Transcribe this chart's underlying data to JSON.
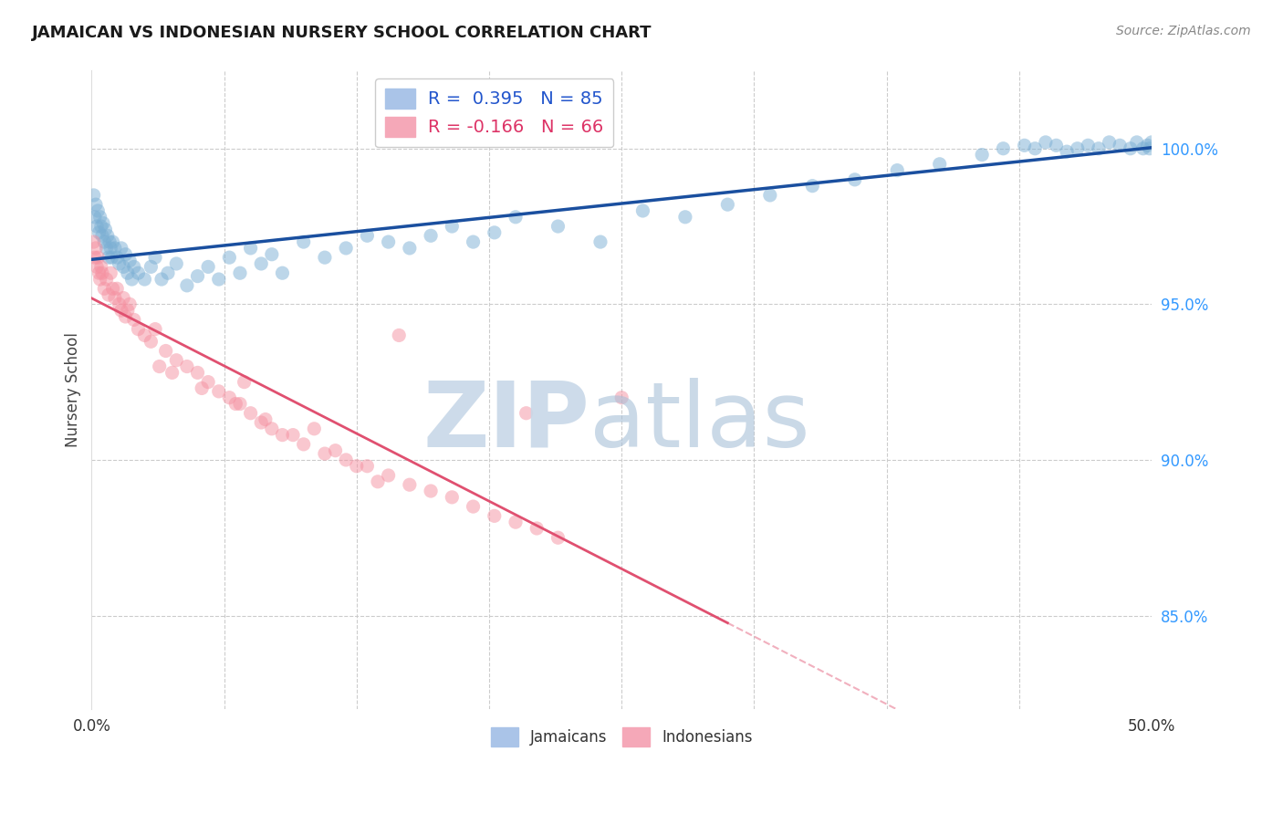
{
  "title": "JAMAICAN VS INDONESIAN NURSERY SCHOOL CORRELATION CHART",
  "source": "Source: ZipAtlas.com",
  "ylabel": "Nursery School",
  "ytick_labels": [
    "85.0%",
    "90.0%",
    "95.0%",
    "100.0%"
  ],
  "ytick_values": [
    85.0,
    90.0,
    95.0,
    100.0
  ],
  "xlim": [
    0.0,
    50.0
  ],
  "ylim": [
    82.0,
    102.5
  ],
  "blue_color": "#7bafd4",
  "pink_color": "#f590a0",
  "blue_line_color": "#1a4f9f",
  "pink_line_color": "#e05070",
  "background_color": "#ffffff",
  "blue_R": 0.395,
  "blue_N": 85,
  "pink_R": -0.166,
  "pink_N": 66,
  "blue_scatter_x": [
    0.1,
    0.15,
    0.2,
    0.25,
    0.3,
    0.35,
    0.4,
    0.45,
    0.5,
    0.55,
    0.6,
    0.65,
    0.7,
    0.75,
    0.8,
    0.85,
    0.9,
    0.95,
    1.0,
    1.1,
    1.2,
    1.3,
    1.4,
    1.5,
    1.6,
    1.7,
    1.8,
    1.9,
    2.0,
    2.2,
    2.5,
    2.8,
    3.0,
    3.3,
    3.6,
    4.0,
    4.5,
    5.0,
    5.5,
    6.0,
    6.5,
    7.0,
    7.5,
    8.0,
    8.5,
    9.0,
    10.0,
    11.0,
    12.0,
    13.0,
    14.0,
    15.0,
    16.0,
    17.0,
    18.0,
    19.0,
    20.0,
    22.0,
    24.0,
    26.0,
    28.0,
    30.0,
    32.0,
    34.0,
    36.0,
    38.0,
    40.0,
    42.0,
    43.0,
    44.0,
    44.5,
    45.0,
    45.5,
    46.0,
    46.5,
    47.0,
    47.5,
    48.0,
    48.5,
    49.0,
    49.3,
    49.6,
    49.8,
    49.9,
    50.0
  ],
  "blue_scatter_y": [
    98.5,
    97.8,
    98.2,
    97.5,
    98.0,
    97.3,
    97.8,
    97.5,
    97.2,
    97.6,
    97.0,
    97.4,
    96.8,
    97.2,
    96.5,
    97.0,
    96.8,
    96.5,
    97.0,
    96.8,
    96.5,
    96.3,
    96.8,
    96.2,
    96.6,
    96.0,
    96.4,
    95.8,
    96.2,
    96.0,
    95.8,
    96.2,
    96.5,
    95.8,
    96.0,
    96.3,
    95.6,
    95.9,
    96.2,
    95.8,
    96.5,
    96.0,
    96.8,
    96.3,
    96.6,
    96.0,
    97.0,
    96.5,
    96.8,
    97.2,
    97.0,
    96.8,
    97.2,
    97.5,
    97.0,
    97.3,
    97.8,
    97.5,
    97.0,
    98.0,
    97.8,
    98.2,
    98.5,
    98.8,
    99.0,
    99.3,
    99.5,
    99.8,
    100.0,
    100.1,
    100.0,
    100.2,
    100.1,
    99.9,
    100.0,
    100.1,
    100.0,
    100.2,
    100.1,
    100.0,
    100.2,
    100.0,
    100.1,
    100.0,
    100.2
  ],
  "pink_scatter_x": [
    0.1,
    0.15,
    0.2,
    0.25,
    0.3,
    0.35,
    0.4,
    0.45,
    0.5,
    0.6,
    0.7,
    0.8,
    0.9,
    1.0,
    1.1,
    1.2,
    1.3,
    1.4,
    1.5,
    1.6,
    1.7,
    1.8,
    2.0,
    2.2,
    2.5,
    2.8,
    3.0,
    3.5,
    4.0,
    4.5,
    5.0,
    5.5,
    6.0,
    6.5,
    7.0,
    7.5,
    8.0,
    8.5,
    9.0,
    10.0,
    11.0,
    12.0,
    13.0,
    14.0,
    15.0,
    16.0,
    17.0,
    18.0,
    19.0,
    20.0,
    21.0,
    22.0,
    14.5,
    7.2,
    10.5,
    20.5,
    25.0,
    3.2,
    3.8,
    5.2,
    6.8,
    8.2,
    9.5,
    11.5,
    12.5,
    13.5
  ],
  "pink_scatter_y": [
    97.0,
    96.5,
    96.8,
    96.2,
    96.5,
    96.0,
    95.8,
    96.2,
    96.0,
    95.5,
    95.8,
    95.3,
    96.0,
    95.5,
    95.2,
    95.5,
    95.0,
    94.8,
    95.2,
    94.6,
    94.8,
    95.0,
    94.5,
    94.2,
    94.0,
    93.8,
    94.2,
    93.5,
    93.2,
    93.0,
    92.8,
    92.5,
    92.2,
    92.0,
    91.8,
    91.5,
    91.2,
    91.0,
    90.8,
    90.5,
    90.2,
    90.0,
    89.8,
    89.5,
    89.2,
    89.0,
    88.8,
    88.5,
    88.2,
    88.0,
    87.8,
    87.5,
    94.0,
    92.5,
    91.0,
    91.5,
    92.0,
    93.0,
    92.8,
    92.3,
    91.8,
    91.3,
    90.8,
    90.3,
    89.8,
    89.3
  ],
  "pink_line_solid_end": 30.0,
  "xtick_positions": [
    0,
    6.25,
    12.5,
    18.75,
    25.0,
    31.25,
    37.5,
    43.75,
    50.0
  ],
  "xtick_labels_show": [
    "0.0%",
    "50.0%"
  ],
  "xtick_labels_pos": [
    0,
    50
  ]
}
